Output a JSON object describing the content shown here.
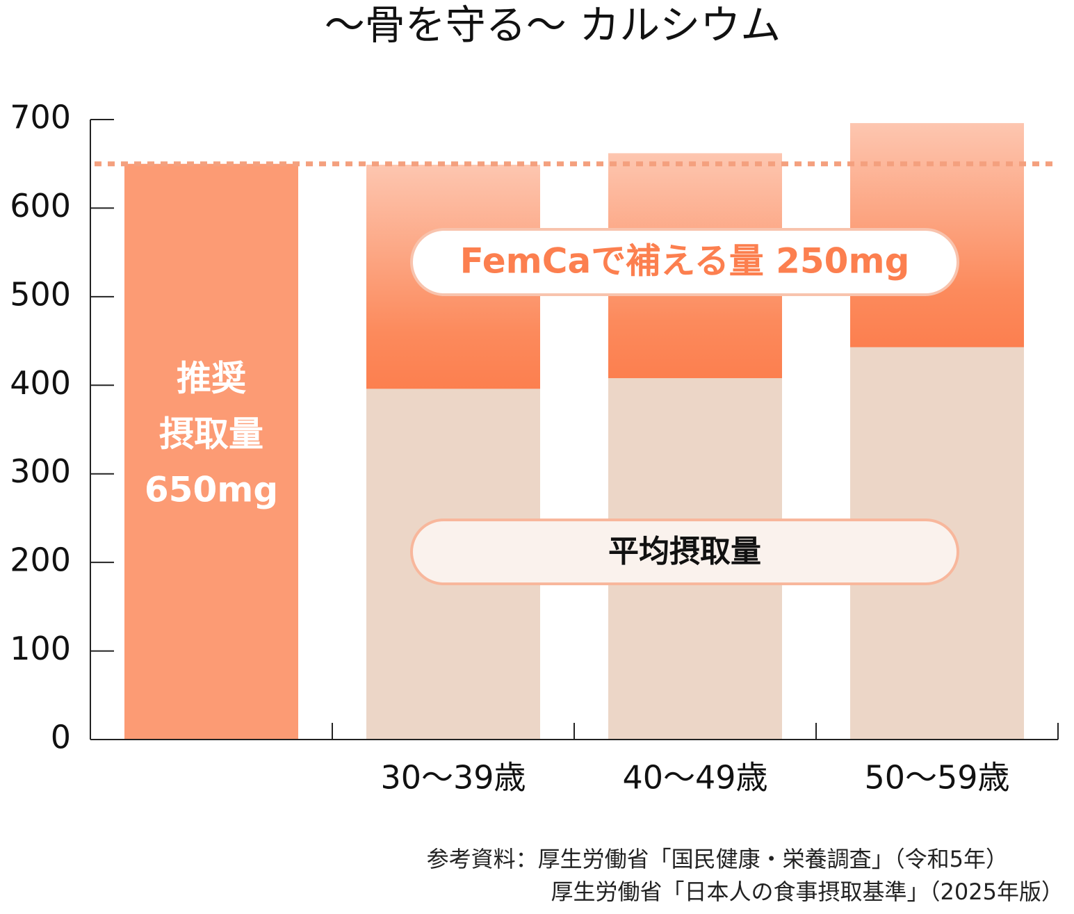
{
  "chart_data": {
    "type": "bar",
    "title": "～骨を守る～ カルシウム",
    "categories": [
      null,
      "30～39歳",
      "40～49歳",
      "50～59歳"
    ],
    "series": [
      {
        "name": [
          "推奨",
          "摂取量",
          "650mg"
        ],
        "color": "#fc9b74",
        "values": [
          650,
          null,
          null,
          null
        ]
      },
      {
        "name": "平均摂取量",
        "color": "#ecd6c7",
        "values": [
          null,
          396,
          408,
          443
        ]
      },
      {
        "name": "FemCaで補える量 250mg",
        "color": "#fc7f4f",
        "values": [
          null,
          253,
          254,
          253
        ]
      }
    ],
    "stacked": true,
    "reference_line": {
      "value": 650,
      "color": "#f4a07e"
    },
    "ylim": [
      0,
      700
    ],
    "yticks": [
      0,
      100,
      200,
      300,
      400,
      500,
      600,
      700
    ],
    "source": [
      "参考資料：厚生労働省「国民健康・栄養調査」（令和5年）",
      "厚生労働省「日本人の食事摂取基準」（2025年版）"
    ]
  }
}
